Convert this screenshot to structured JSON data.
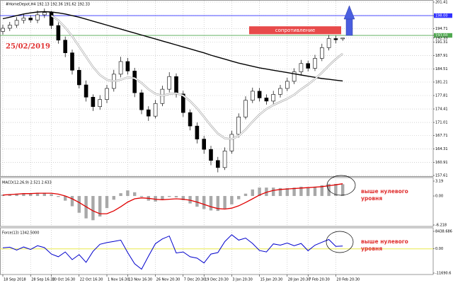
{
  "chart_data": [
    {
      "type": "candlestick",
      "title": "#HomeDepot,H4 192.13 192.36 191.62 192.33",
      "annotation": "25/02/2019",
      "categories": [
        "18 Sep 2018",
        null,
        null,
        null,
        "28 Sep 16:30",
        null,
        null,
        "10 Oct 16:30",
        null,
        null,
        null,
        "22 Oct 16:30",
        null,
        null,
        null,
        "1 Nov 16:30",
        null,
        null,
        "13 Nov 16:30",
        null,
        null,
        null,
        "26 Nov 20:30",
        null,
        null,
        null,
        "7 Dec 20:30",
        null,
        null,
        "19 Dec 20:30",
        null,
        null,
        null,
        "3 Jan 20:30",
        null,
        null,
        null,
        "15 Jan 20:30",
        null,
        null,
        null,
        "28 Jan 20:30",
        null,
        null,
        "7 Feb 20:30",
        null,
        null,
        null,
        "20 Feb 20:30",
        null
      ],
      "open": [
        194.0,
        194.8,
        195.6,
        196.8,
        197.4,
        196.9,
        198.2,
        198.8,
        195.5,
        191.8,
        188.6,
        184.2,
        180.5,
        177.4,
        175.0,
        176.8,
        179.6,
        183.2,
        186.4,
        184.0,
        178.5,
        174.2,
        172.6,
        175.8,
        179.4,
        182.6,
        178.2,
        173.5,
        170.1,
        166.8,
        164.2,
        161.4,
        159.6,
        163.8,
        168.0,
        172.4,
        176.6,
        178.9,
        177.2,
        176.4,
        178.1,
        179.6,
        181.4,
        183.8,
        185.9,
        184.7,
        187.2,
        189.9,
        192.2,
        192.13
      ],
      "high": [
        195.7,
        196.4,
        197.6,
        198.5,
        198.1,
        199.3,
        199.8,
        199.2,
        196.3,
        192.7,
        189.4,
        185.0,
        181.6,
        178.1,
        177.9,
        180.5,
        184.3,
        187.6,
        187.3,
        184.8,
        179.3,
        175.1,
        176.7,
        180.3,
        183.7,
        183.4,
        179.0,
        174.3,
        171.0,
        167.6,
        165.1,
        162.3,
        164.7,
        168.9,
        173.3,
        177.6,
        179.8,
        179.7,
        178.1,
        179.0,
        180.5,
        182.3,
        184.7,
        186.8,
        186.6,
        188.1,
        190.9,
        193.1,
        192.9,
        192.36
      ],
      "low": [
        193.2,
        194.1,
        194.9,
        196.0,
        196.2,
        196.1,
        197.4,
        194.6,
        190.9,
        187.5,
        183.1,
        179.6,
        176.3,
        173.9,
        174.2,
        175.9,
        178.8,
        182.4,
        183.1,
        177.4,
        173.1,
        171.4,
        172.0,
        175.1,
        178.6,
        177.3,
        172.4,
        169.0,
        165.7,
        163.1,
        160.2,
        158.4,
        159.0,
        163.1,
        167.2,
        171.8,
        175.9,
        176.3,
        175.5,
        175.7,
        177.3,
        178.9,
        180.7,
        183.0,
        183.9,
        184.0,
        186.5,
        189.2,
        191.0,
        191.62
      ],
      "close": [
        194.8,
        195.6,
        196.8,
        197.4,
        196.9,
        198.2,
        198.8,
        195.5,
        191.8,
        188.6,
        184.2,
        180.5,
        177.4,
        175.0,
        176.8,
        179.6,
        183.2,
        186.4,
        184.0,
        178.5,
        174.2,
        172.6,
        175.8,
        179.4,
        182.6,
        178.2,
        173.5,
        170.1,
        166.8,
        164.2,
        161.4,
        159.6,
        163.8,
        168.0,
        172.4,
        176.6,
        178.9,
        177.2,
        176.4,
        178.1,
        179.6,
        181.4,
        183.8,
        185.9,
        184.7,
        187.2,
        189.9,
        192.2,
        191.9,
        192.33
      ],
      "lines": [
        {
          "color": "#000000",
          "values": [
            197.2,
            197.6,
            198.0,
            198.4,
            198.7,
            198.9,
            199.0,
            198.9,
            198.7,
            198.4,
            198.0,
            197.6,
            197.1,
            196.6,
            196.1,
            195.6,
            195.1,
            194.6,
            194.1,
            193.6,
            193.1,
            192.6,
            192.1,
            191.6,
            191.1,
            190.6,
            190.1,
            189.6,
            189.1,
            188.6,
            188.0,
            187.5,
            187.0,
            186.5,
            186.0,
            185.6,
            185.2,
            184.8,
            184.5,
            184.2,
            183.9,
            183.6,
            183.3,
            183.0,
            182.7,
            182.4,
            182.1,
            181.9,
            181.7,
            181.5
          ]
        },
        {
          "color": "#ffffff",
          "values": [
            null,
            null,
            null,
            null,
            null,
            null,
            null,
            198.0,
            196.8,
            195.0,
            192.8,
            190.2,
            187.6,
            185.0,
            183.0,
            181.8,
            181.4,
            181.8,
            182.4,
            182.2,
            181.0,
            179.4,
            178.2,
            177.8,
            178.2,
            178.4,
            177.8,
            176.4,
            174.6,
            172.4,
            170.2,
            168.2,
            167.0,
            166.8,
            167.6,
            169.2,
            171.2,
            173.0,
            174.4,
            175.4,
            176.2,
            177.0,
            178.0,
            179.4,
            180.6,
            182.0,
            183.6,
            185.4,
            187.0,
            188.4
          ]
        }
      ],
      "levels": [
        {
          "value": 198,
          "color": "#3030ff"
        },
        {
          "value": 193,
          "color": "#4fa84f"
        }
      ],
      "zone": {
        "label": "сопротивление",
        "color": "#e84a4a",
        "range": [
          193.3,
          195.3
        ]
      },
      "ylim": [
        157.61,
        201.41
      ],
      "yticks": [
        201.41,
        {
          "value": 198,
          "label": "198.00"
        },
        194.71,
        {
          "value": 193,
          "label": "193.00"
        },
        192.33,
        191.31,
        187.91,
        184.51,
        181.21,
        177.81,
        174.41,
        171.01,
        167.71,
        164.31,
        160.91,
        157.61
      ],
      "grid": true
    },
    {
      "type": "macd",
      "title": "MACD(12,26,9) 2.521 2.633",
      "annotation": [
        "выше нулевого",
        "уровня"
      ],
      "color": "#a8a8a8",
      "values": [
        0.3,
        0.4,
        0.5,
        0.6,
        0.6,
        0.7,
        0.7,
        0.4,
        -0.2,
        -1.0,
        -2.2,
        -3.6,
        -4.8,
        -5.2,
        -4.4,
        -2.6,
        -0.8,
        0.6,
        1.2,
        0.8,
        -0.2,
        -1.0,
        -1.2,
        -0.8,
        -0.2,
        -0.3,
        -0.9,
        -1.6,
        -2.3,
        -2.8,
        -3.1,
        -3.2,
        -2.7,
        -1.8,
        -0.7,
        0.5,
        1.4,
        1.8,
        1.8,
        1.8,
        1.7,
        1.7,
        1.8,
        2.0,
        1.9,
        2.0,
        2.3,
        2.6,
        2.6,
        2.521
      ],
      "signal": {
        "color": "#e00000",
        "values": [
          0.2,
          0.3,
          0.4,
          0.5,
          0.5,
          0.6,
          0.6,
          0.6,
          0.4,
          0.0,
          -0.6,
          -1.4,
          -2.3,
          -3.2,
          -3.8,
          -3.8,
          -3.2,
          -2.3,
          -1.3,
          -0.6,
          -0.4,
          -0.5,
          -0.7,
          -0.8,
          -0.7,
          -0.6,
          -0.7,
          -0.9,
          -1.3,
          -1.8,
          -2.3,
          -2.7,
          -2.8,
          -2.6,
          -2.1,
          -1.4,
          -0.6,
          0.2,
          0.8,
          1.2,
          1.4,
          1.5,
          1.6,
          1.7,
          1.8,
          1.9,
          2.0,
          2.2,
          2.4,
          2.633
        ]
      },
      "ylim": [
        -6.218,
        3.19
      ],
      "yticks": [
        3.19,
        {
          "value": 0,
          "label": "0.00"
        },
        -6.218
      ],
      "grid": true
    },
    {
      "type": "line",
      "title": "Force(13) 1342.5000",
      "annotation": [
        "выше нулевого",
        "уровня"
      ],
      "color": "#0000cc",
      "zero_line_color": "#e8e84a",
      "values": [
        500,
        800,
        -600,
        900,
        -300,
        1500,
        600,
        -2500,
        -3800,
        -1500,
        -5200,
        -2800,
        -6500,
        -1200,
        2200,
        3000,
        3600,
        4200,
        -1800,
        -7200,
        -9800,
        -3500,
        2500,
        4800,
        6200,
        -2000,
        -1500,
        -3800,
        -4500,
        -6800,
        -2500,
        -1800,
        3500,
        6800,
        4200,
        5200,
        2600,
        -800,
        -1500,
        2400,
        1800,
        2800,
        1500,
        2600,
        -900,
        1800,
        3200,
        4500,
        1200,
        1342.5
      ],
      "ylim": [
        -11690.6,
        8438.686
      ],
      "yticks": [
        8438.686,
        {
          "value": 0,
          "label": "0.00"
        },
        -11690.6
      ],
      "grid": true
    }
  ]
}
